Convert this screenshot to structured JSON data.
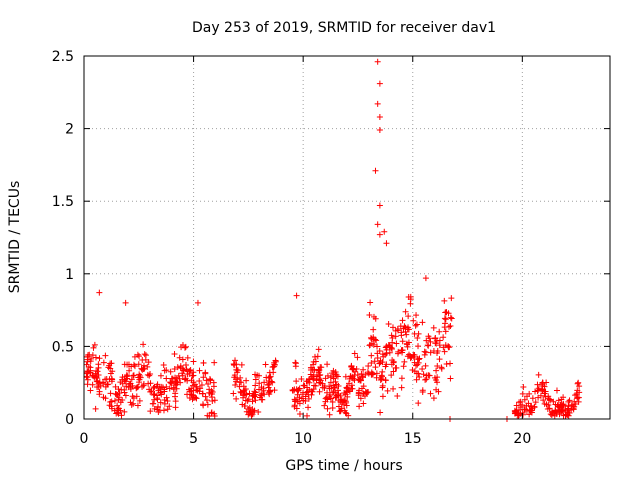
{
  "chart_data": {
    "type": "scatter",
    "title": "Day 253 of 2019, SRMTID for receiver dav1",
    "xlabel": "GPS time / hours",
    "ylabel": "SRMTID / TECUs",
    "xlim": [
      0,
      24
    ],
    "ylim": [
      0,
      2.5
    ],
    "xticks": [
      0,
      5,
      10,
      15,
      20
    ],
    "xtick_labels": [
      "0",
      "5",
      "10",
      "15",
      "20"
    ],
    "yticks": [
      0,
      0.5,
      1,
      1.5,
      2,
      2.5
    ],
    "ytick_labels": [
      "0",
      "0.5",
      "1",
      "1.5",
      "2",
      "2.5"
    ],
    "grid": true,
    "marker": "+",
    "color": "#ff0000",
    "clusters": [
      {
        "x_range": [
          0.1,
          6.0
        ],
        "base": 0.25,
        "spread": 0.18,
        "count": 340
      },
      {
        "x_range": [
          6.8,
          8.8
        ],
        "base": 0.22,
        "spread": 0.14,
        "count": 110
      },
      {
        "x_range": [
          9.5,
          13.0
        ],
        "base": 0.22,
        "spread": 0.15,
        "count": 220
      },
      {
        "x_range": [
          13.0,
          16.8
        ],
        "base": 0.45,
        "spread": 0.25,
        "count": 220
      },
      {
        "x_range": [
          19.6,
          22.6
        ],
        "base": 0.1,
        "spread": 0.12,
        "count": 150
      }
    ],
    "notable_points": [
      {
        "x": 0.7,
        "y": 0.87
      },
      {
        "x": 1.9,
        "y": 0.8
      },
      {
        "x": 5.2,
        "y": 0.8
      },
      {
        "x": 9.7,
        "y": 0.85
      },
      {
        "x": 13.4,
        "y": 2.46
      },
      {
        "x": 13.5,
        "y": 2.31
      },
      {
        "x": 13.4,
        "y": 2.17
      },
      {
        "x": 13.5,
        "y": 2.08
      },
      {
        "x": 13.5,
        "y": 1.99
      },
      {
        "x": 13.3,
        "y": 1.71
      },
      {
        "x": 13.5,
        "y": 1.47
      },
      {
        "x": 13.4,
        "y": 1.34
      },
      {
        "x": 13.7,
        "y": 1.29
      },
      {
        "x": 13.5,
        "y": 1.27
      },
      {
        "x": 13.8,
        "y": 1.21
      },
      {
        "x": 15.6,
        "y": 0.97
      },
      {
        "x": 16.7,
        "y": 0.0
      },
      {
        "x": 19.3,
        "y": 0.0
      }
    ]
  }
}
